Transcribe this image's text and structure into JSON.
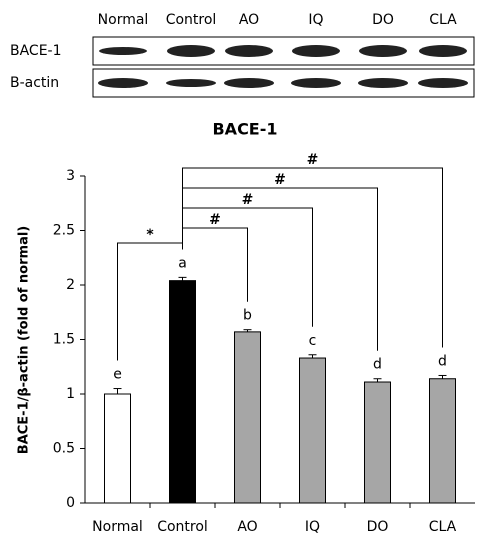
{
  "blot": {
    "lanes": [
      "Normal",
      "Control",
      "AO",
      "IQ",
      "DO",
      "CLA"
    ],
    "rows": [
      "BACE-1",
      "B-actin"
    ]
  },
  "chart_data": {
    "type": "bar",
    "title": "BACE-1",
    "y_label": "BACE-1/β-actin (fold of normal)",
    "categories": [
      "Normal",
      "Control",
      "AO",
      "IQ",
      "DO",
      "CLA"
    ],
    "values": [
      1.0,
      2.04,
      1.57,
      1.33,
      1.11,
      1.14
    ],
    "errors": [
      0.05,
      0.03,
      0.02,
      0.03,
      0.03,
      0.03
    ],
    "colors": [
      "#ffffff",
      "#000000",
      "#a6a6a6",
      "#a6a6a6",
      "#a6a6a6",
      "#a6a6a6"
    ],
    "annotations": [
      "e",
      "a",
      "b",
      "c",
      "d",
      "d"
    ],
    "comparisons": [
      {
        "from": 0,
        "to": 1,
        "label": "*"
      },
      {
        "from": 1,
        "to": 2,
        "label": "#"
      },
      {
        "from": 1,
        "to": 3,
        "label": "#"
      },
      {
        "from": 1,
        "to": 4,
        "label": "#"
      },
      {
        "from": 1,
        "to": 5,
        "label": "#"
      }
    ],
    "ylim": [
      0,
      3
    ],
    "yticks": [
      0,
      0.5,
      1,
      1.5,
      2,
      2.5,
      3
    ]
  }
}
